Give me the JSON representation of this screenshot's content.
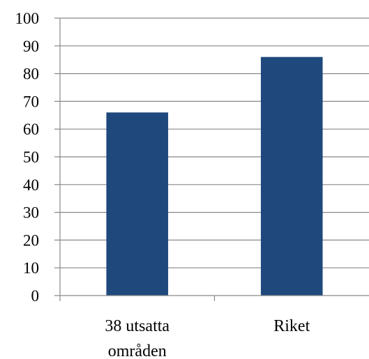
{
  "chart_data": {
    "type": "bar",
    "title": "",
    "xlabel": "",
    "ylabel": "",
    "categories": [
      [
        "38 utsatta",
        "områden"
      ],
      [
        "Riket"
      ]
    ],
    "values": [
      66,
      86
    ],
    "ylim": [
      0,
      100
    ],
    "yticks": [
      "0",
      "10",
      "20",
      "30",
      "40",
      "50",
      "60",
      "70",
      "80",
      "90",
      "100"
    ],
    "grid": true,
    "legend": "none",
    "bar_color": "#1f497d",
    "grid_color": "#888888",
    "axis_color": "#888888"
  }
}
